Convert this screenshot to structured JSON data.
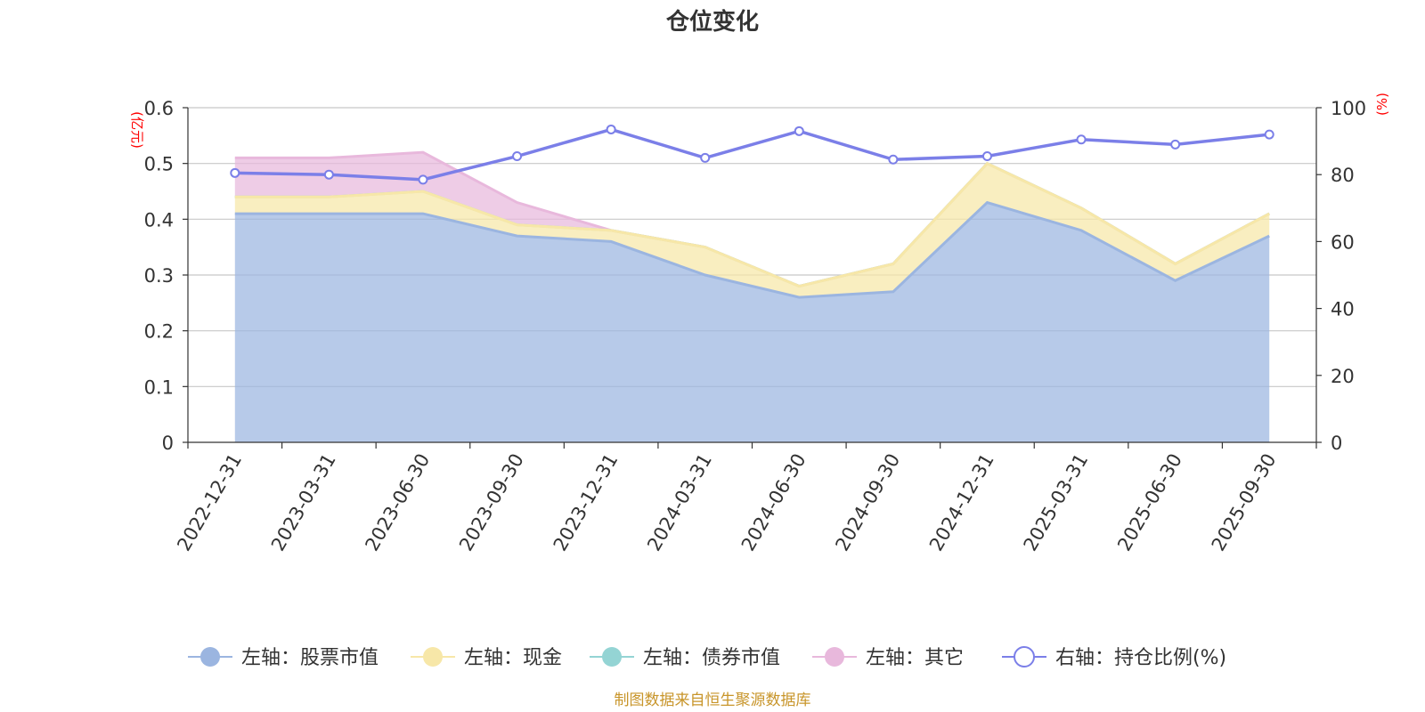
{
  "chart_data": {
    "type": "area",
    "title": "仓位变化",
    "categories": [
      "2022-12-31",
      "2023-03-31",
      "2023-06-30",
      "2023-09-30",
      "2023-12-31",
      "2024-03-31",
      "2024-06-30",
      "2024-09-30",
      "2024-12-31",
      "2025-03-31",
      "2025-06-30",
      "2025-09-30"
    ],
    "left_axis": {
      "unit": "(亿元)",
      "ylim": [
        0,
        0.6
      ],
      "ticks": [
        "0",
        "0.1",
        "0.2",
        "0.3",
        "0.4",
        "0.5",
        "0.6"
      ],
      "stacked": true
    },
    "right_axis": {
      "unit": "(%)",
      "ylim": [
        0,
        100
      ],
      "ticks": [
        "0",
        "20",
        "40",
        "60",
        "80",
        "100"
      ]
    },
    "series": [
      {
        "name": "左轴：股票市值",
        "axis": "left",
        "color": "#9bb5e0",
        "values": [
          0.41,
          0.41,
          0.41,
          0.37,
          0.36,
          0.3,
          0.26,
          0.27,
          0.43,
          0.38,
          0.29,
          0.37
        ]
      },
      {
        "name": "左轴：现金",
        "axis": "left",
        "color": "#f7e7a8",
        "values": [
          0.03,
          0.03,
          0.04,
          0.02,
          0.02,
          0.05,
          0.02,
          0.05,
          0.07,
          0.04,
          0.03,
          0.04
        ]
      },
      {
        "name": "左轴：债券市值",
        "axis": "left",
        "color": "#94d4d4",
        "values": [
          0,
          0,
          0,
          0,
          0,
          0,
          0,
          0,
          0,
          0,
          0,
          0
        ]
      },
      {
        "name": "左轴：其它",
        "axis": "left",
        "color": "#e8b8dc",
        "values": [
          0.07,
          0.07,
          0.07,
          0.04,
          0.0,
          0.0,
          0.0,
          0.0,
          0.0,
          0.0,
          0.0,
          0.0
        ]
      },
      {
        "name": "右轴：持仓比例(%)",
        "axis": "right",
        "color": "#7b7fe8",
        "values": [
          80.5,
          80.0,
          78.5,
          85.5,
          93.5,
          85.0,
          93.0,
          84.5,
          85.5,
          90.5,
          89.0,
          92.0
        ]
      }
    ]
  },
  "source_note": "制图数据来自恒生聚源数据库"
}
